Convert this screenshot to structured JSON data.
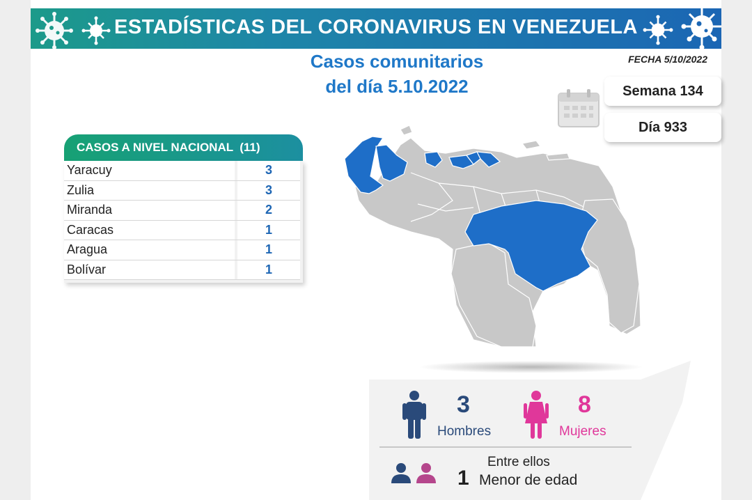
{
  "header": {
    "title": "ESTADÍSTICAS DEL CORONAVIRUS EN VENEZUELA"
  },
  "subtitle": {
    "line1": "Casos comunitarios",
    "line2": "del día 5.10.2022"
  },
  "fecha": "FECHA 5/10/2022",
  "semana": "Semana 134",
  "dia": "Día 933",
  "national": {
    "title": "CASOS A NIVEL NACIONAL  (11)",
    "rows": [
      {
        "name": "Yaracuy",
        "value": "3"
      },
      {
        "name": "Zulia",
        "value": "3"
      },
      {
        "name": "Miranda",
        "value": "2"
      },
      {
        "name": "Caracas",
        "value": "1"
      },
      {
        "name": "Aragua",
        "value": "1"
      },
      {
        "name": "Bolívar",
        "value": "1"
      }
    ]
  },
  "gender": {
    "men_count": "3",
    "men_label": "Hombres",
    "women_count": "8",
    "women_label": "Mujeres"
  },
  "minors": {
    "intro": "Entre ellos",
    "count": "1",
    "label": "Menor de edad"
  },
  "colors": {
    "highlight_state": "#1e6ec8",
    "other_state": "#c8c8c8",
    "men": "#2a4a7a",
    "women": "#e0379a",
    "value_text": "#1e66b4"
  }
}
